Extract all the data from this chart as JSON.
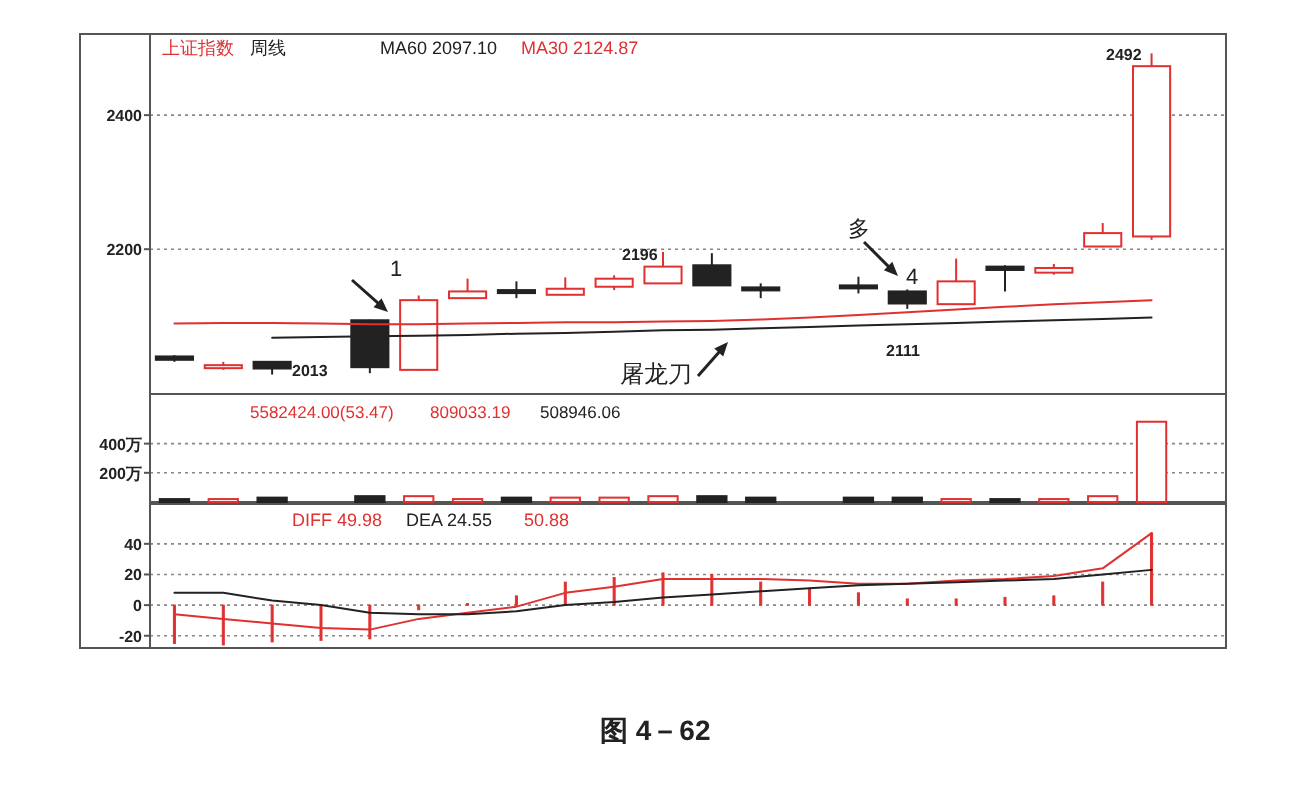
{
  "chart_data": [
    {
      "type": "candlestick",
      "title": "上证指数",
      "subtitle": "周线",
      "categories": [
        null,
        null,
        null,
        null,
        null,
        null,
        null,
        null,
        null,
        null,
        null,
        null,
        null,
        null,
        null,
        null,
        null,
        null,
        null,
        null,
        null
      ],
      "ohlc": [
        [
          2040,
          2042,
          2032,
          2035
        ],
        [
          2025,
          2032,
          2020,
          2027
        ],
        [
          2032,
          2033,
          2013,
          2022
        ],
        null,
        [
          2094,
          2095,
          2015,
          2024
        ],
        [
          2020,
          2131,
          2019,
          2124
        ],
        [
          2127,
          2156,
          2126,
          2137
        ],
        [
          2139,
          2152,
          2127,
          2136
        ],
        [
          2132,
          2158,
          2131,
          2141
        ],
        [
          2144,
          2161,
          2139,
          2156
        ],
        [
          2149,
          2196,
          2148,
          2174
        ],
        [
          2176,
          2194,
          2146,
          2146
        ],
        [
          2143,
          2149,
          2127,
          2141
        ],
        null,
        [
          2146,
          2159,
          2134,
          2142
        ],
        [
          2137,
          2140,
          2111,
          2119
        ],
        [
          2118,
          2186,
          2117,
          2152
        ],
        [
          2174,
          2176,
          2137,
          2169
        ],
        [
          2165,
          2178,
          2162,
          2172
        ],
        [
          2204,
          2239,
          2203,
          2224
        ],
        [
          2219,
          2492,
          2214,
          2473
        ]
      ],
      "colors": [
        "#222222",
        "#e03030",
        "#222222",
        null,
        "#222222",
        "#e03030",
        "#e03030",
        "#222222",
        "#e03030",
        "#e03030",
        "#e03030",
        "#222222",
        "#222222",
        null,
        "#222222",
        "#222222",
        "#e03030",
        "#222222",
        "#e03030",
        "#e03030",
        "#e03030"
      ],
      "series": [
        {
          "type": "line",
          "name": "MA60 2097.10",
          "color": "#222222",
          "values": [
            null,
            null,
            2068,
            2069,
            2070,
            2071,
            2072,
            2074,
            2075,
            2077,
            2079,
            2080,
            2082,
            2084,
            2086,
            2088,
            2090,
            2092,
            2094,
            2096,
            2098
          ]
        },
        {
          "type": "line",
          "name": "MA30 2124.87",
          "color": "#e03030",
          "values": [
            2089,
            2090,
            2090,
            2089,
            2088,
            2088,
            2089,
            2090,
            2091,
            2091,
            2092,
            2093,
            2095,
            2098,
            2102,
            2106,
            2110,
            2114,
            2118,
            2121,
            2124
          ]
        }
      ],
      "ylim": [
        1984,
        2521
      ],
      "yticks": [
        2200,
        2400
      ],
      "grid": "y",
      "legend": "top left",
      "tick_labels": "y",
      "annotations": [
        "1",
        "多",
        "4",
        "屠龙刀",
        "2013",
        "2196",
        "2111",
        "2492"
      ]
    },
    {
      "type": "bar",
      "categories": [
        null,
        null,
        null,
        null,
        null,
        null,
        null,
        null,
        null,
        null,
        null,
        null,
        null,
        null,
        null,
        null,
        null,
        null,
        null,
        null,
        null
      ],
      "values": [
        20,
        20,
        30,
        null,
        40,
        40,
        20,
        30,
        30,
        30,
        40,
        40,
        30,
        null,
        30,
        30,
        20,
        20,
        20,
        40,
        550
      ],
      "colors": [
        "#222222",
        "#e03030",
        "#222222",
        null,
        "#222222",
        "#e03030",
        "#e03030",
        "#222222",
        "#e03030",
        "#e03030",
        "#e03030",
        "#222222",
        "#222222",
        null,
        "#222222",
        "#222222",
        "#e03030",
        "#222222",
        "#e03030",
        "#e03030",
        "#e03030"
      ],
      "ylim": [
        0,
        740
      ],
      "yticks": [
        {
          "value": 200,
          "label": "200万"
        },
        {
          "value": 400,
          "label": "400万"
        }
      ],
      "grid": "y",
      "tick_labels": "y",
      "annotations": [
        "5582424.00(53.47)",
        "809033.19",
        "508946.06"
      ]
    },
    {
      "type": "line",
      "categories": [
        null,
        null,
        null,
        null,
        null,
        null,
        null,
        null,
        null,
        null,
        null,
        null,
        null,
        null,
        null,
        null,
        null,
        null,
        null,
        null,
        null
      ],
      "series": [
        {
          "type": "bar",
          "color": "#e03030",
          "values": [
            -25,
            -26,
            -24,
            -23,
            -22,
            -3,
            1,
            6,
            15,
            18,
            21,
            20,
            15,
            11,
            8,
            4,
            4,
            5,
            6,
            15,
            47
          ]
        },
        {
          "type": "line",
          "name": "DIFF 49.98",
          "color": "#e03030",
          "values": [
            -6,
            -9,
            -12,
            -15,
            -16,
            -9,
            -5,
            -1,
            8,
            12,
            17,
            17,
            17,
            16,
            14,
            14,
            16,
            17,
            19,
            24,
            47
          ]
        },
        {
          "type": "line",
          "name": "DEA 24.55",
          "color": "#222222",
          "values": [
            8,
            8,
            3,
            0,
            -5,
            -6,
            -6,
            -4,
            0,
            2,
            5,
            7,
            9,
            11,
            13,
            14,
            15,
            16,
            17,
            20,
            23
          ]
        }
      ],
      "ylim": [
        -28,
        66
      ],
      "yticks": [
        -20,
        0,
        20,
        40
      ],
      "grid": "y",
      "legend": "top left",
      "tick_labels": "y",
      "annotations": [
        "50.88",
        "图 4－62"
      ]
    }
  ]
}
